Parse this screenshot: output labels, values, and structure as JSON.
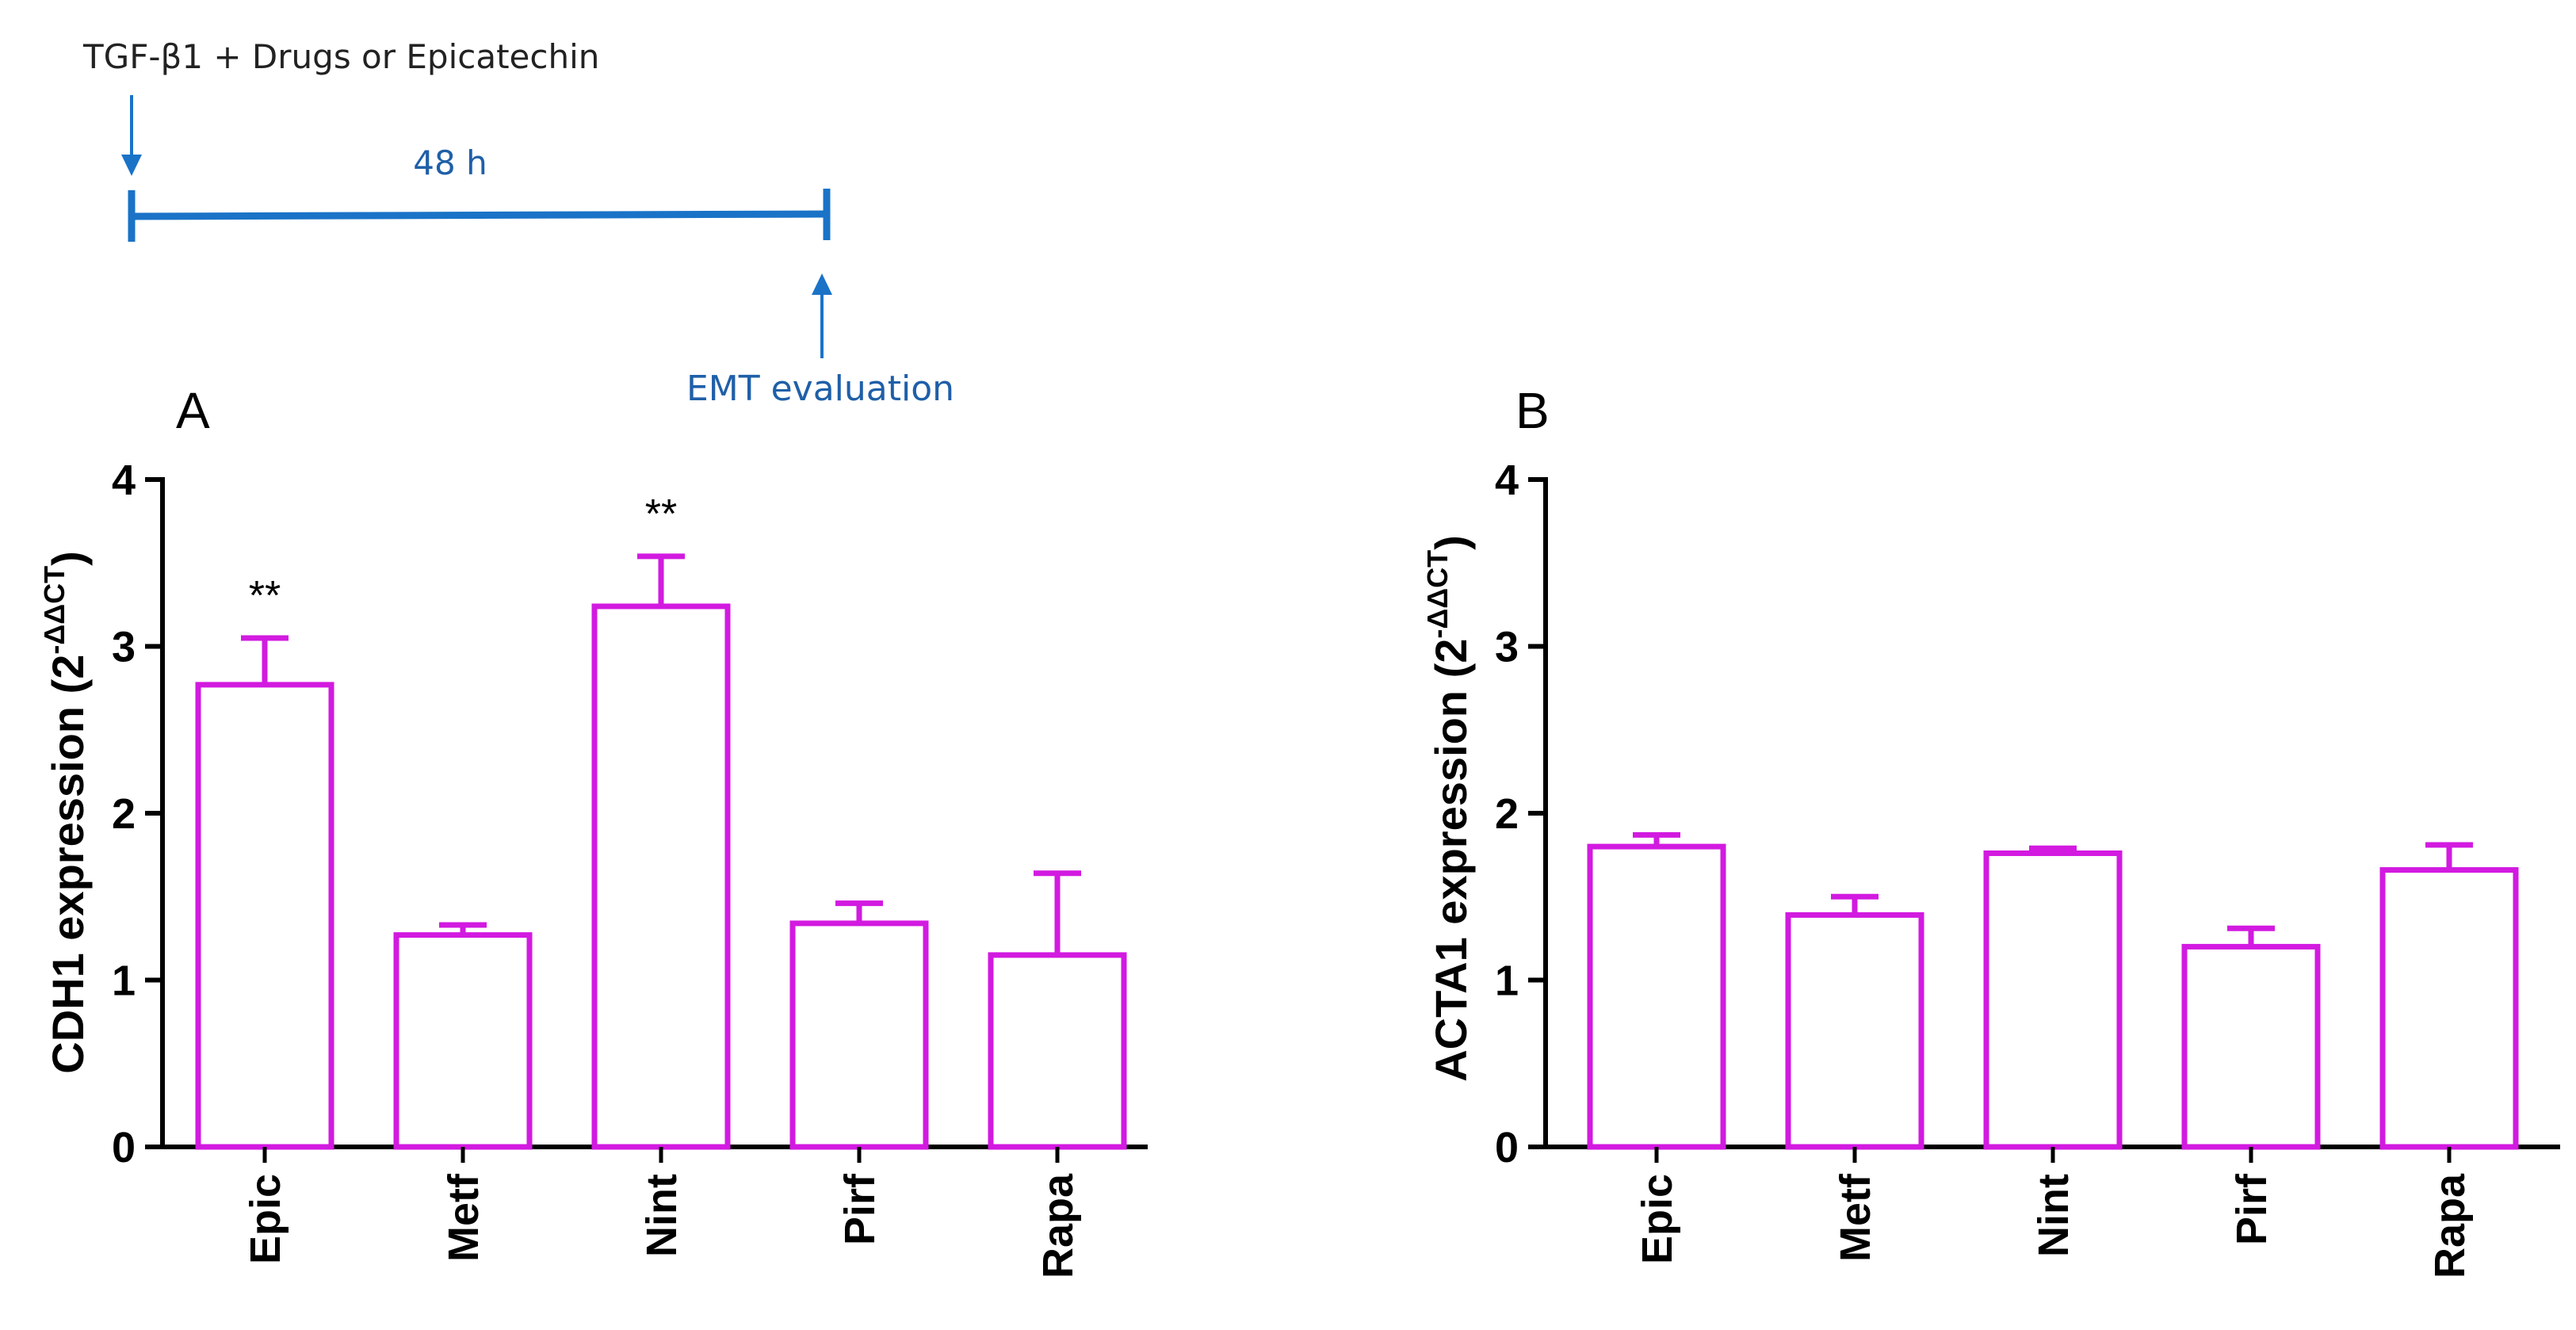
{
  "timeline": {
    "treatment_label": "TGF-β1 +  Drugs or Epicatechin",
    "duration_label": "48 h",
    "endpoint_label": "EMT evaluation",
    "colors": {
      "line": "#1a73c7",
      "text": "#1f5fa8",
      "header": "#222222"
    }
  },
  "colors": {
    "bar_stroke": "#d21ae0",
    "axis": "#000000",
    "text": "#000000"
  },
  "chart_data": [
    {
      "panel_label": "A",
      "type": "bar",
      "title": "",
      "xlabel": "",
      "ylabel": "CDH1 expression",
      "ylabel_formula": {
        "open": "(2",
        "sup": "-ΔΔCT",
        "close": ")"
      },
      "categories": [
        "Epic",
        "Metf",
        "Nint",
        "Pirf",
        "Rapa"
      ],
      "values": [
        2.77,
        1.27,
        3.24,
        1.34,
        1.15
      ],
      "errors": [
        0.28,
        0.06,
        0.3,
        0.12,
        0.49
      ],
      "annotations": [
        "**",
        "",
        "**",
        "",
        ""
      ],
      "ylim": [
        0,
        4
      ],
      "yticks": [
        "0",
        "1",
        "2",
        "3",
        "4"
      ],
      "grid": false
    },
    {
      "panel_label": "B",
      "type": "bar",
      "title": "",
      "xlabel": "",
      "ylabel": "ACTA1 expression",
      "ylabel_formula": {
        "open": "(2",
        "sup": "-ΔΔCT",
        "close": ")"
      },
      "categories": [
        "Epic",
        "Metf",
        "Nint",
        "Pirf",
        "Rapa"
      ],
      "values": [
        1.8,
        1.39,
        1.76,
        1.2,
        1.66
      ],
      "errors": [
        0.07,
        0.11,
        0.03,
        0.11,
        0.15
      ],
      "annotations": [
        "",
        "",
        "",
        "",
        ""
      ],
      "ylim": [
        0,
        4
      ],
      "yticks": [
        "0",
        "1",
        "2",
        "3",
        "4"
      ],
      "grid": false
    }
  ]
}
